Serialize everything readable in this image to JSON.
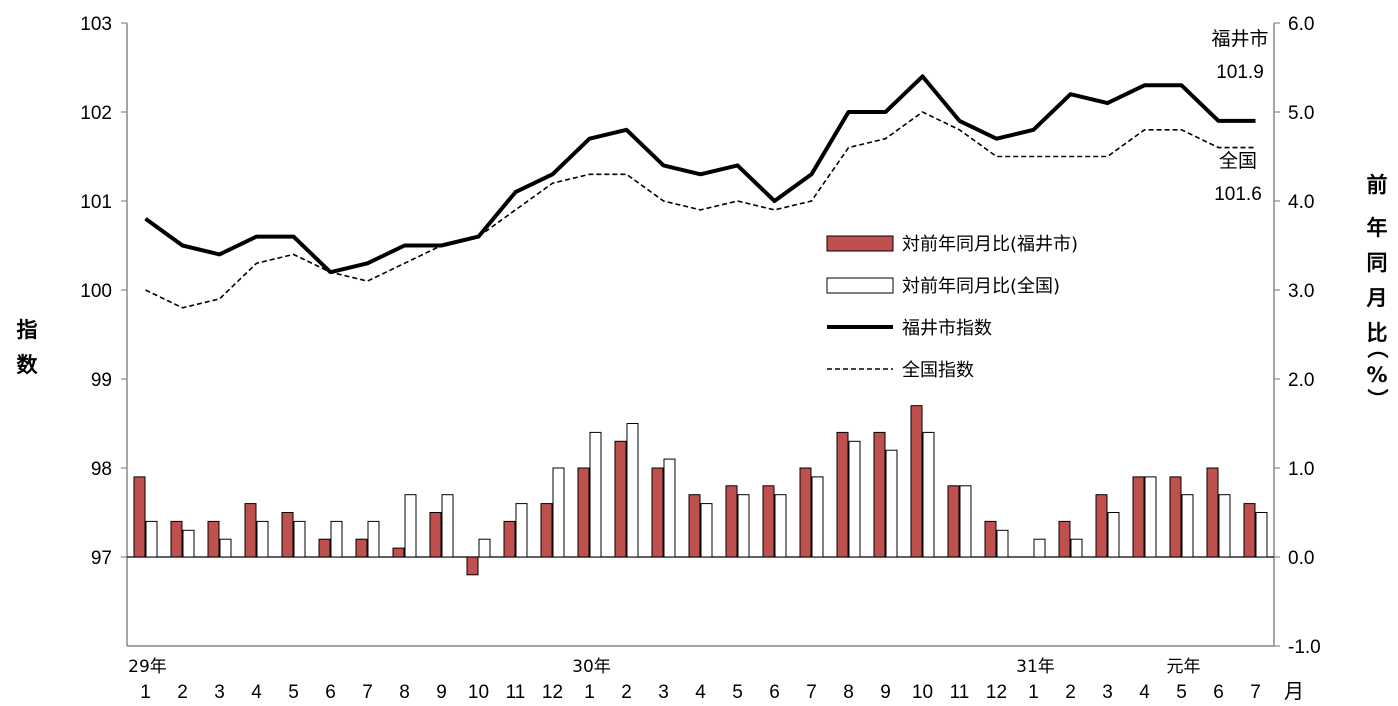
{
  "chart_data": {
    "type": "bar+line",
    "left_axis": {
      "label_chars": [
        "指",
        "数"
      ],
      "ylim": [
        96,
        103
      ],
      "ticks": [
        "97",
        "98",
        "99",
        "100",
        "101",
        "102",
        "103"
      ]
    },
    "right_axis": {
      "label_chars": [
        "前",
        "年",
        "同",
        "月",
        "比",
        "（",
        "%",
        "）"
      ],
      "ylim": [
        -1.0,
        6.0
      ],
      "ticks": [
        "-1.0",
        "0.0",
        "1.0",
        "2.0",
        "3.0",
        "4.0",
        "5.0",
        "6.0"
      ]
    },
    "x_unit": "月",
    "months": [
      "1",
      "2",
      "3",
      "4",
      "5",
      "6",
      "7",
      "8",
      "9",
      "10",
      "11",
      "12",
      "1",
      "2",
      "3",
      "4",
      "5",
      "6",
      "7",
      "8",
      "9",
      "10",
      "11",
      "12",
      "1",
      "2",
      "3",
      "4",
      "5",
      "6",
      "7"
    ],
    "year_labels": [
      {
        "text": "29年",
        "index": 0
      },
      {
        "text": "30年",
        "index": 12
      },
      {
        "text": "31年",
        "index": 24
      },
      {
        "text": "元年",
        "index": 28
      }
    ],
    "series": [
      {
        "name": "対前年同月比(福井市)",
        "type": "bar",
        "axis": "right",
        "color": "#c0504d",
        "values": [
          0.9,
          0.4,
          0.4,
          0.6,
          0.5,
          0.2,
          0.2,
          0.1,
          0.5,
          -0.2,
          0.4,
          0.6,
          1.0,
          1.3,
          1.0,
          0.7,
          0.8,
          0.8,
          1.0,
          1.4,
          1.4,
          1.7,
          0.8,
          0.4,
          0.0,
          0.4,
          0.7,
          0.9,
          0.9,
          1.0,
          0.6
        ]
      },
      {
        "name": "対前年同月比(全国)",
        "type": "bar",
        "axis": "right",
        "color": "#ffffff",
        "values": [
          0.4,
          0.3,
          0.2,
          0.4,
          0.4,
          0.4,
          0.4,
          0.7,
          0.7,
          0.2,
          0.6,
          1.0,
          1.4,
          1.5,
          1.1,
          0.6,
          0.7,
          0.7,
          0.9,
          1.3,
          1.2,
          1.4,
          0.8,
          0.3,
          0.2,
          0.2,
          0.5,
          0.9,
          0.7,
          0.7,
          0.5
        ]
      },
      {
        "name": "福井市指数",
        "type": "line",
        "axis": "left",
        "color": "#000000",
        "values": [
          100.8,
          100.5,
          100.4,
          100.6,
          100.6,
          100.2,
          100.3,
          100.5,
          100.5,
          100.6,
          101.1,
          101.3,
          101.7,
          101.8,
          101.4,
          101.3,
          101.4,
          101.0,
          101.3,
          102.0,
          102.0,
          102.4,
          101.9,
          101.7,
          101.8,
          102.2,
          102.1,
          102.3,
          102.3,
          101.9,
          101.9
        ]
      },
      {
        "name": "全国指数",
        "type": "line",
        "axis": "left",
        "color": "#000000",
        "values": [
          100.0,
          99.8,
          99.9,
          100.3,
          100.4,
          100.2,
          100.1,
          100.3,
          100.5,
          100.6,
          100.9,
          101.2,
          101.3,
          101.3,
          101.0,
          100.9,
          101.0,
          100.9,
          101.0,
          101.6,
          101.7,
          102.0,
          101.8,
          101.5,
          101.5,
          101.5,
          101.5,
          101.8,
          101.8,
          101.6,
          101.6
        ]
      }
    ],
    "end_labels": [
      {
        "name": "福井市",
        "value": "101.9"
      },
      {
        "name": "全国",
        "value": "101.6"
      }
    ],
    "legend": {
      "placement": "center-right",
      "items": [
        "対前年同月比(福井市)",
        "対前年同月比(全国)",
        "福井市指数",
        "全国指数"
      ]
    },
    "grid": false
  }
}
